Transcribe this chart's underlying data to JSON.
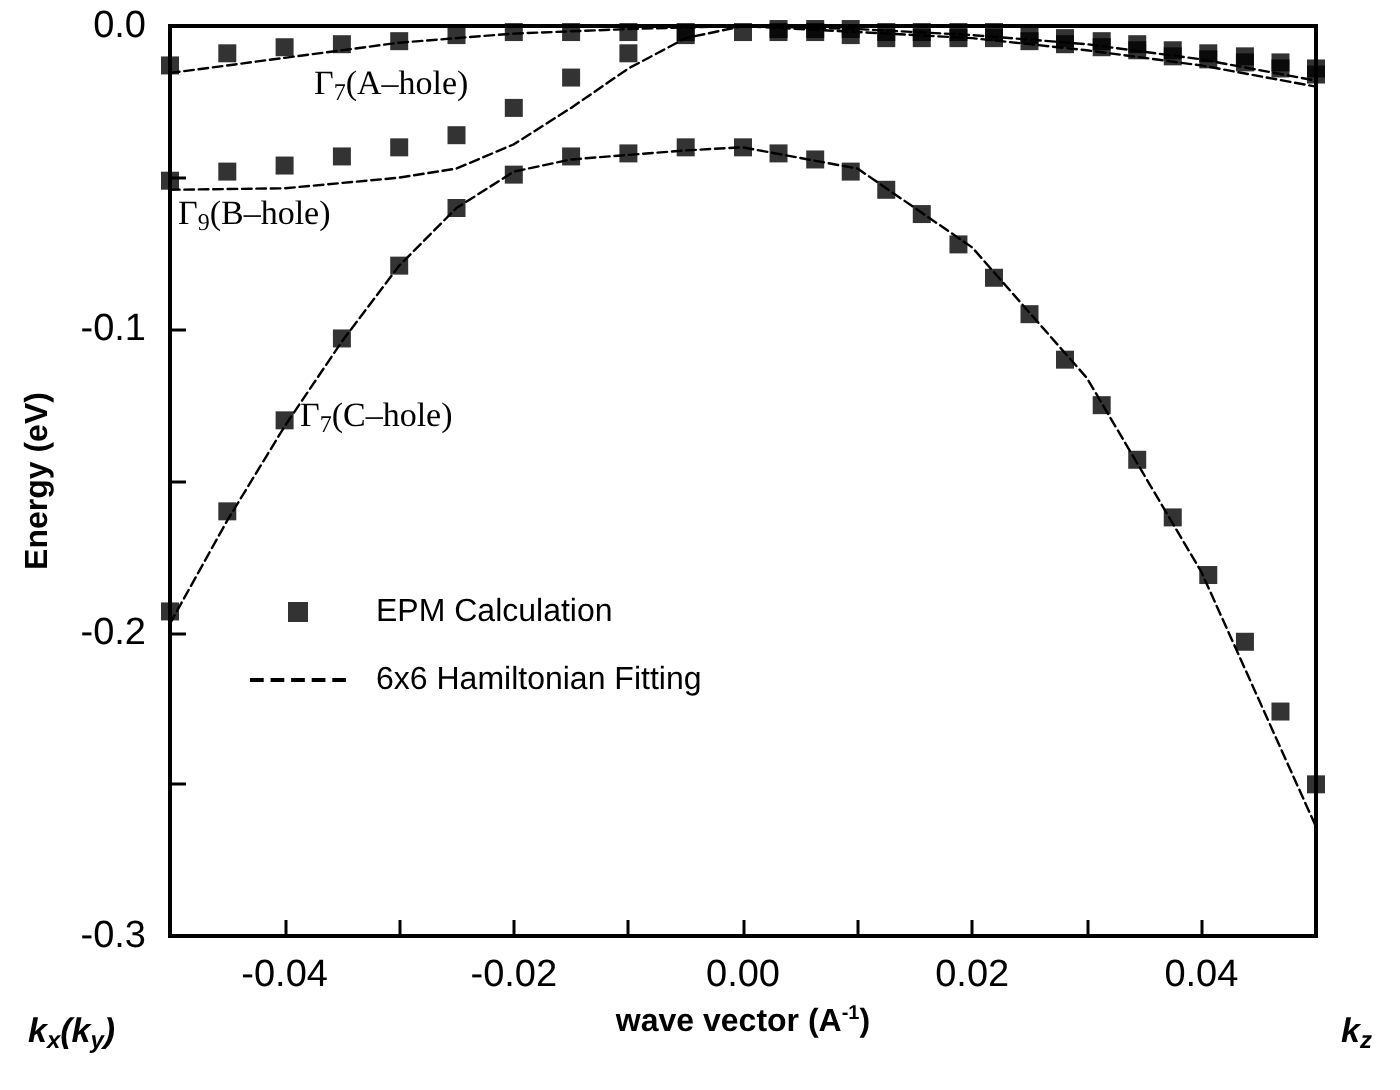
{
  "chart_data": {
    "type": "scatter",
    "xlabel": "wave vector (A$^{-1}$)",
    "ylabel": "Energy (eV)",
    "xlim": [
      -0.05,
      0.05
    ],
    "xticks": [
      -0.04,
      {
        "value": -0.03,
        "label": null
      },
      -0.02,
      {
        "value": -0.01,
        "label": null
      },
      {
        "value": 0,
        "label": "0.00"
      },
      {
        "value": 0.01,
        "label": null
      },
      0.02,
      {
        "value": 0.03,
        "label": null
      },
      0.04
    ],
    "ylim": [
      -0.3,
      0
    ],
    "yticks": [
      -0.3,
      {
        "value": -0.25,
        "label": null
      },
      -0.2,
      {
        "value": -0.15,
        "label": null
      },
      -0.1,
      {
        "value": -0.05,
        "label": null
      },
      {
        "value": 0,
        "label": "0.0"
      }
    ],
    "grid": false,
    "legend": "bottom left",
    "series": [
      {
        "name": "EPM Calculation",
        "marker": "square",
        "color": "#000000",
        "x": [
          -0.05,
          -0.045,
          -0.04,
          -0.035,
          -0.03,
          -0.025,
          -0.02,
          -0.015,
          -0.01,
          -0.005,
          0,
          -0.05,
          -0.045,
          -0.04,
          -0.035,
          -0.03,
          -0.025,
          -0.02,
          -0.015,
          -0.01,
          -0.005,
          -0.05,
          -0.045,
          -0.04,
          -0.035,
          -0.03,
          -0.025,
          -0.02,
          -0.015,
          -0.01,
          -0.005,
          0,
          0.0031,
          0.0063,
          0.0094,
          0.0125,
          0.0156,
          0.0188,
          0.0219,
          0.025,
          0.0281,
          0.0313,
          0.0344,
          0.0375,
          0.0406,
          0.0438,
          0.0469,
          0.05,
          0.0031,
          0.0063,
          0.0094,
          0.0125,
          0.0156,
          0.0188,
          0.0219,
          0.025,
          0.0281,
          0.0313,
          0.0344,
          0.0375,
          0.0406,
          0.0438,
          0.0469,
          0.05,
          0.0031,
          0.0063,
          0.0094,
          0.0125,
          0.0156,
          0.0188,
          0.0219,
          0.025,
          0.0281,
          0.0313,
          0.0344,
          0.0375,
          0.0406,
          0.0438,
          0.0469,
          0.05
        ],
        "values": [
          -0.013,
          -0.009,
          -0.007,
          -0.006,
          -0.005,
          -0.003,
          -0.002,
          -0.002,
          -0.002,
          -0.002,
          -0.002,
          -0.051,
          -0.048,
          -0.046,
          -0.043,
          -0.04,
          -0.036,
          -0.027,
          -0.017,
          -0.009,
          -0.003,
          -0.193,
          -0.16,
          -0.13,
          -0.103,
          -0.079,
          -0.06,
          -0.049,
          -0.043,
          -0.042,
          -0.04,
          -0.04,
          -0.042,
          -0.044,
          -0.048,
          -0.054,
          -0.062,
          -0.072,
          -0.083,
          -0.095,
          -0.11,
          -0.125,
          -0.143,
          -0.162,
          -0.181,
          -0.203,
          -0.226,
          -0.25,
          -0.001,
          -0.001,
          -0.001,
          -0.002,
          -0.002,
          -0.002,
          -0.002,
          -0.003,
          -0.004,
          -0.005,
          -0.006,
          -0.008,
          -0.009,
          -0.01,
          -0.012,
          -0.014,
          -0.002,
          -0.002,
          -0.003,
          -0.004,
          -0.004,
          -0.004,
          -0.004,
          -0.005,
          -0.006,
          -0.007,
          -0.008,
          -0.01,
          -0.011,
          -0.012,
          -0.014,
          -0.016
        ]
      },
      {
        "name": "6x6 Hamiltonian Fitting",
        "type": "line",
        "marker": "none",
        "line_style": "dashed",
        "color": "#000000",
        "x": [
          -0.05,
          -0.04,
          -0.03,
          -0.02,
          -0.01,
          0,
          0.01,
          0.02,
          0.03,
          0.04,
          0.05
        ],
        "values": [
          -0.0155,
          -0.0105,
          -0.0055,
          -0.0025,
          -0.001,
          0,
          -0.001,
          -0.003,
          -0.006,
          -0.011,
          -0.018
        ]
      },
      {
        "type": "line",
        "marker": "none",
        "line_style": "dashed",
        "color": "#000000",
        "x": [
          -0.05,
          -0.04,
          -0.03,
          -0.025,
          -0.02,
          -0.015,
          -0.01,
          -0.005,
          0,
          0.01,
          0.02,
          0.03,
          0.04,
          0.05
        ],
        "values": [
          -0.054,
          -0.0535,
          -0.05,
          -0.047,
          -0.039,
          -0.027,
          -0.014,
          -0.004,
          0,
          -0.002,
          -0.004,
          -0.008,
          -0.013,
          -0.02
        ]
      },
      {
        "type": "line",
        "marker": "none",
        "line_style": "dashed",
        "color": "#000000",
        "x": [
          -0.05,
          -0.045,
          -0.04,
          -0.035,
          -0.03,
          -0.025,
          -0.02,
          -0.015,
          -0.01,
          -0.005,
          0,
          0.01,
          0.02,
          0.03,
          0.04,
          0.05
        ],
        "values": [
          -0.197,
          -0.163,
          -0.132,
          -0.104,
          -0.079,
          -0.06,
          -0.048,
          -0.044,
          -0.0425,
          -0.041,
          -0.04,
          -0.047,
          -0.073,
          -0.116,
          -0.18,
          -0.264
        ]
      }
    ],
    "annotations": [
      "k$_{x}$(k$_{y}$)",
      "k$_{z}$",
      "Γ$_{7}$(A–hole)",
      "Γ$_{9}$(B–hole)",
      "Γ$_{7}$(C–hole)"
    ]
  }
}
